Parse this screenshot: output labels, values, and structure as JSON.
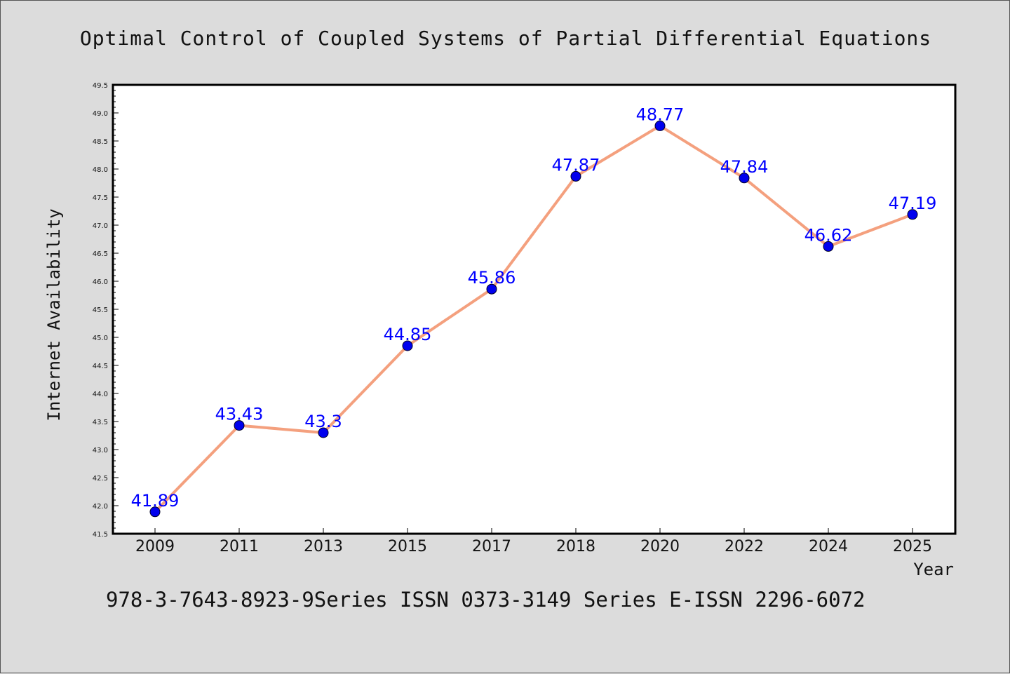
{
  "chart_data": {
    "type": "line",
    "title": "Optimal Control of Coupled Systems of Partial Differential Equations",
    "xlabel": "Year",
    "ylabel": "Internet Availability",
    "footer": "978-3-7643-8923-9Series ISSN 0373-3149 Series E-ISSN 2296-6072",
    "categories": [
      "2009",
      "2011",
      "2013",
      "2015",
      "2017",
      "2018",
      "2020",
      "2022",
      "2024",
      "2025"
    ],
    "values": [
      41.89,
      43.43,
      43.3,
      44.85,
      45.86,
      47.87,
      48.77,
      47.84,
      46.62,
      47.19
    ],
    "data_labels": [
      "41.89",
      "43.43",
      "43.3",
      "44.85",
      "45.86",
      "47.87",
      "48.77",
      "47.84",
      "46.62",
      "47.19"
    ],
    "ylim": [
      41.5,
      49.5
    ],
    "yticks": [
      "41.5",
      "42.0",
      "42.5",
      "43.0",
      "43.5",
      "44.0",
      "44.5",
      "45.0",
      "45.5",
      "46.0",
      "46.5",
      "47.0",
      "47.5",
      "48.0",
      "48.5",
      "49.0",
      "49.5"
    ],
    "grid": false,
    "colors": {
      "line": "#f4a07e",
      "marker": "#0000ee",
      "label": "#0000ff",
      "background": "#dcdcdc",
      "plot_bg": "#ffffff"
    }
  }
}
